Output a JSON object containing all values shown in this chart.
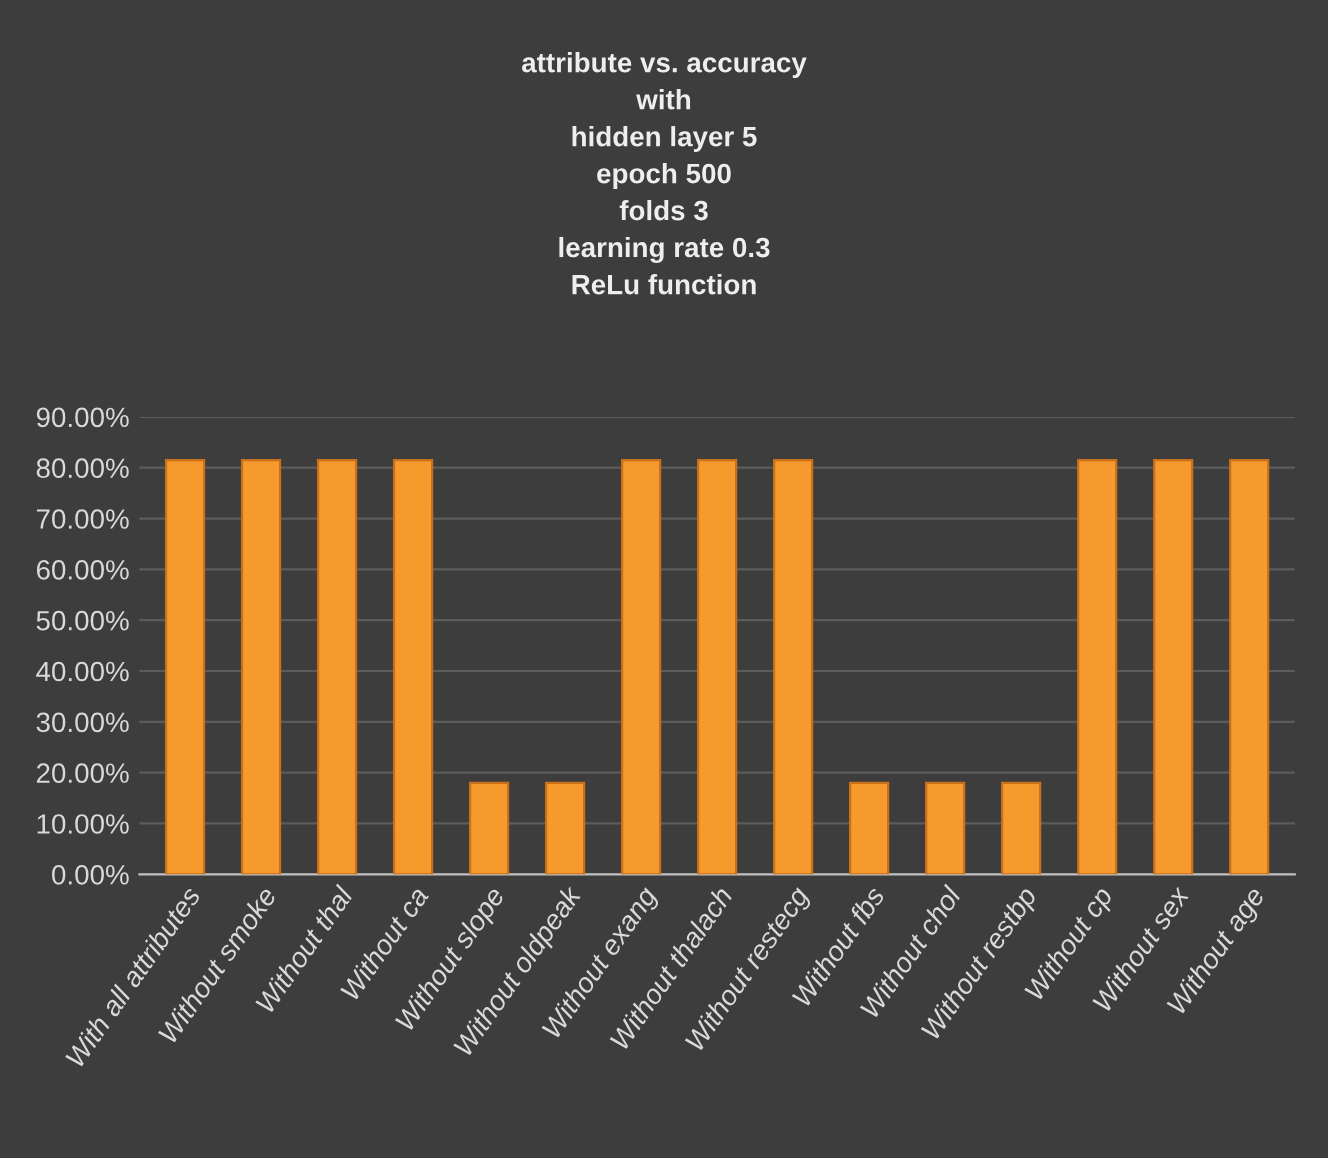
{
  "chart_data": {
    "type": "bar",
    "title": "attribute vs. accuracy\nwith\nhidden layer 5\nepoch 500\nfolds 3\nlearning rate 0.3\nReLu function",
    "categories": [
      "With all attributes",
      "Without smoke",
      "Without thal",
      "Without ca",
      "Without slope",
      "Without oldpeak",
      "Without exang",
      "Without thalach",
      "Without restecg",
      "Without fbs",
      "Without chol",
      "Without restbp",
      "Without cp",
      "Without sex",
      "Without age"
    ],
    "values": [
      81.5,
      81.5,
      81.5,
      81.5,
      18,
      18,
      81.5,
      81.5,
      81.5,
      18,
      18,
      18,
      81.5,
      81.5,
      81.5
    ],
    "color": "#f79a2e",
    "ylim": [
      0,
      90
    ],
    "yticks": [
      {
        "value": 0,
        "label": "0.00%"
      },
      {
        "value": 10,
        "label": "10.00%"
      },
      {
        "value": 20,
        "label": "20.00%"
      },
      {
        "value": 30,
        "label": "30.00%"
      },
      {
        "value": 40,
        "label": "40.00%"
      },
      {
        "value": 50,
        "label": "50.00%"
      },
      {
        "value": 60,
        "label": "60.00%"
      },
      {
        "value": 70,
        "label": "70.00%"
      },
      {
        "value": 80,
        "label": "80.00%"
      },
      {
        "value": 90,
        "label": "90.00%"
      }
    ],
    "grid": "y"
  }
}
